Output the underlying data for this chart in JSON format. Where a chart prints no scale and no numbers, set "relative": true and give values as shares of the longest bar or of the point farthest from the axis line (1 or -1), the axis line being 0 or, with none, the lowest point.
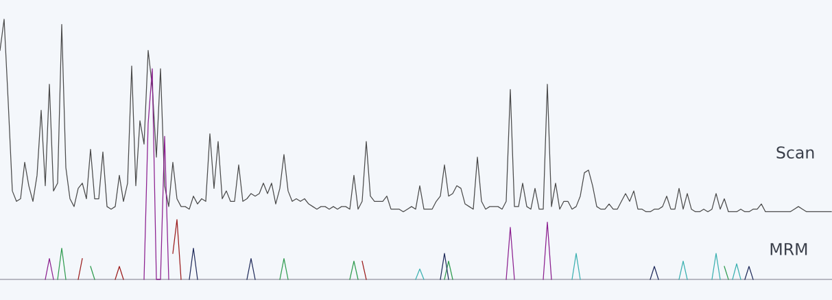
{
  "chart_data": {
    "type": "line",
    "relative": true,
    "categories": [
      null,
      null,
      null,
      null,
      null,
      null,
      null,
      null,
      null,
      null,
      null,
      null,
      null,
      null,
      null,
      null,
      null,
      null,
      null,
      null,
      null,
      null,
      null,
      null,
      null,
      null,
      null,
      null,
      null,
      null,
      null,
      null,
      null,
      null,
      null,
      null,
      null,
      null,
      null,
      null,
      null,
      null,
      null,
      null,
      null,
      null,
      null,
      null,
      null,
      null,
      null,
      null,
      null,
      null,
      null,
      null,
      null,
      null,
      null,
      null,
      null,
      null,
      null,
      null,
      null,
      null,
      null,
      null,
      null,
      null,
      null,
      null,
      null,
      null,
      null,
      null,
      null,
      null,
      null,
      null,
      null,
      null,
      null,
      null,
      null,
      null,
      null,
      null,
      null,
      null,
      null,
      null,
      null,
      null,
      null,
      null,
      null,
      null,
      null,
      null,
      null,
      null,
      null,
      null,
      null,
      null,
      null,
      null,
      null,
      null,
      null,
      null,
      null,
      null,
      null,
      null,
      null,
      null,
      null,
      null,
      null,
      null,
      null,
      null,
      null,
      null,
      null,
      null,
      null,
      null,
      null,
      null,
      null,
      null,
      null,
      null,
      null,
      null,
      null,
      null,
      null,
      null,
      null,
      null,
      null,
      null,
      null,
      null,
      null,
      null,
      null,
      null,
      null,
      null,
      null,
      null,
      null,
      null,
      null,
      null,
      null,
      null,
      null,
      null,
      null,
      null,
      null,
      null,
      null,
      null,
      null,
      null,
      null,
      null,
      null,
      null,
      null,
      null,
      null,
      null,
      null,
      null,
      null,
      null,
      null,
      null,
      null,
      null,
      null,
      null,
      null,
      null,
      null,
      null,
      null,
      null,
      null,
      null,
      null,
      null,
      null,
      null,
      null
    ],
    "series": [
      {
        "color": "#4a4a4a",
        "values": [
          0.88,
          1.0,
          0.68,
          0.34,
          0.3,
          0.31,
          0.45,
          0.36,
          0.3,
          0.4,
          0.65,
          0.36,
          0.75,
          0.34,
          0.37,
          0.98,
          0.43,
          0.31,
          0.28,
          0.35,
          0.37,
          0.31,
          0.5,
          0.31,
          0.31,
          0.49,
          0.28,
          0.27,
          0.28,
          0.4,
          0.3,
          0.37,
          0.82,
          0.36,
          0.61,
          0.52,
          0.88,
          0.74,
          0.47,
          0.81,
          0.36,
          0.28,
          0.45,
          0.31,
          0.28,
          0.28,
          0.27,
          0.32,
          0.29,
          0.31,
          0.3,
          0.56,
          0.35,
          0.53,
          0.31,
          0.34,
          0.3,
          0.3,
          0.44,
          0.3,
          0.31,
          0.33,
          0.32,
          0.33,
          0.37,
          0.33,
          0.37,
          0.29,
          0.35,
          0.48,
          0.34,
          0.3,
          0.31,
          0.3,
          0.31,
          0.29,
          0.28,
          0.27,
          0.28,
          0.28,
          0.27,
          0.28,
          0.27,
          0.28,
          0.28,
          0.27,
          0.4,
          0.27,
          0.3,
          0.53,
          0.32,
          0.3,
          0.3,
          0.3,
          0.32,
          0.27,
          0.27,
          0.27,
          0.26,
          0.27,
          0.28,
          0.27,
          0.36,
          0.27,
          0.27,
          0.27,
          0.3,
          0.32,
          0.44,
          0.32,
          0.33,
          0.36,
          0.35,
          0.29,
          0.28,
          0.27,
          0.47,
          0.3,
          0.27,
          0.28,
          0.28,
          0.28,
          0.27,
          0.3,
          0.73,
          0.28,
          0.28,
          0.37,
          0.28,
          0.27,
          0.35,
          0.27,
          0.27,
          0.75,
          0.28,
          0.37,
          0.27,
          0.3,
          0.3,
          0.27,
          0.28,
          0.32,
          0.41,
          0.42,
          0.36,
          0.28,
          0.27,
          0.27,
          0.29,
          0.27,
          0.27,
          0.3,
          0.33,
          0.3,
          0.34,
          0.27,
          0.27,
          0.26,
          0.26,
          0.27,
          0.27,
          0.28,
          0.32,
          0.27,
          0.27,
          0.35,
          0.27,
          0.33,
          0.27,
          0.26,
          0.26,
          0.27,
          0.26,
          0.27,
          0.33,
          0.27,
          0.31,
          0.26,
          0.26,
          0.26,
          0.27,
          0.26,
          0.26,
          0.27,
          0.27,
          0.29,
          0.26,
          0.26,
          0.26,
          0.26,
          0.26,
          0.26,
          0.26,
          0.27,
          0.28,
          0.27,
          0.26,
          0.26,
          0.26,
          0.26,
          0.26,
          0.26,
          0.26
        ]
      },
      {
        "color": "#8b1f8f",
        "values": [
          null,
          null,
          null,
          null,
          null,
          null,
          null,
          null,
          null,
          null,
          null,
          0,
          0.08,
          0,
          null,
          null,
          null,
          null,
          null,
          null,
          null,
          null,
          null,
          null,
          null,
          null,
          null,
          null,
          null,
          null,
          null,
          null,
          null,
          null,
          null,
          0,
          0.6,
          0.81,
          0,
          0,
          0.55,
          0,
          null,
          null,
          null,
          null,
          null,
          null,
          null,
          null,
          null,
          null,
          null,
          null,
          null,
          null,
          null,
          null,
          null,
          null,
          null,
          null,
          null,
          null,
          null,
          null,
          null,
          null,
          null,
          null,
          null,
          null,
          null,
          null,
          null,
          null,
          null,
          null,
          null,
          null,
          null,
          null,
          null,
          null,
          null,
          null,
          null,
          null,
          null,
          null,
          null,
          null,
          null,
          null,
          null,
          null,
          null,
          null,
          null,
          null,
          null,
          null,
          null,
          null,
          null,
          null,
          null,
          null,
          null,
          null,
          null,
          null,
          null,
          null,
          null,
          null,
          null,
          null,
          null,
          null,
          null,
          null,
          null,
          0,
          0.2,
          0,
          null,
          null,
          null,
          null,
          null,
          null,
          0,
          0.22,
          0,
          null,
          null,
          null,
          null,
          null,
          null,
          null,
          null,
          null,
          null,
          null,
          null,
          null,
          null,
          null,
          null,
          null,
          null,
          null,
          null,
          null,
          null,
          null,
          null,
          null,
          null,
          null,
          null,
          null,
          null,
          null,
          null,
          null,
          null,
          null,
          null,
          null,
          null,
          null,
          null,
          null,
          null,
          null,
          null,
          null,
          null,
          null,
          null,
          null,
          null,
          null,
          null,
          null,
          null,
          null,
          null,
          null,
          null,
          null,
          null,
          null,
          null,
          null,
          null,
          null,
          null,
          null,
          null
        ]
      },
      {
        "color": "#9b1b1b",
        "values": [
          null,
          null,
          null,
          null,
          null,
          null,
          null,
          null,
          null,
          null,
          null,
          null,
          null,
          null,
          null,
          null,
          null,
          null,
          null,
          0,
          0.08,
          null,
          null,
          null,
          null,
          null,
          null,
          null,
          0,
          0.05,
          0,
          null,
          null,
          null,
          null,
          null,
          null,
          null,
          null,
          null,
          null,
          null,
          0.1,
          0.23,
          0,
          null,
          null,
          null,
          null,
          null,
          null,
          null,
          null,
          null,
          null,
          null,
          null,
          null,
          null,
          null,
          null,
          null,
          null,
          null,
          null,
          null,
          null,
          null,
          null,
          null,
          null,
          null,
          null,
          null,
          null,
          null,
          null,
          null,
          null,
          null,
          null,
          null,
          null,
          null,
          null,
          null,
          null,
          null,
          0.07,
          0,
          null,
          null,
          null,
          null,
          null,
          null,
          null,
          null,
          null,
          null,
          null,
          null,
          null,
          null,
          null,
          null,
          null,
          null,
          null,
          null,
          null,
          null,
          null,
          null,
          null,
          null,
          null,
          null,
          null,
          null,
          null,
          null,
          null,
          null,
          null,
          null,
          null,
          null,
          null,
          null,
          null,
          null,
          null,
          null,
          null,
          null,
          null,
          null,
          null,
          null,
          null,
          null,
          null,
          null,
          null,
          null,
          null,
          null,
          null,
          null,
          null,
          null,
          null,
          null,
          null,
          null,
          null,
          null,
          null,
          null,
          null,
          null,
          null,
          null,
          null,
          null,
          null,
          null,
          null,
          null,
          null,
          null,
          null,
          null,
          null,
          null,
          null,
          null,
          null,
          null,
          null,
          null,
          null,
          null,
          null,
          null,
          null,
          null,
          null,
          null,
          null,
          null,
          null,
          null,
          null,
          null,
          null,
          null,
          null,
          null,
          null,
          null,
          null
        ]
      },
      {
        "color": "#2e9b4e",
        "values": [
          null,
          null,
          null,
          null,
          null,
          null,
          null,
          null,
          null,
          null,
          null,
          null,
          null,
          null,
          0,
          0.12,
          0,
          null,
          null,
          null,
          null,
          null,
          0.05,
          0,
          null,
          null,
          null,
          null,
          null,
          null,
          null,
          null,
          null,
          null,
          null,
          null,
          null,
          null,
          null,
          null,
          null,
          null,
          null,
          null,
          null,
          null,
          null,
          null,
          null,
          null,
          null,
          null,
          null,
          null,
          null,
          null,
          null,
          null,
          null,
          null,
          null,
          null,
          null,
          null,
          null,
          null,
          null,
          null,
          0,
          0.08,
          0,
          null,
          null,
          null,
          null,
          null,
          null,
          null,
          null,
          null,
          null,
          null,
          null,
          null,
          null,
          0,
          0.07,
          0,
          null,
          null,
          null,
          null,
          null,
          null,
          null,
          null,
          null,
          null,
          null,
          null,
          null,
          null,
          null,
          null,
          null,
          null,
          null,
          null,
          0,
          0.07,
          0,
          null,
          null,
          null,
          null,
          null,
          null,
          null,
          null,
          null,
          null,
          null,
          null,
          null,
          null,
          null,
          null,
          null,
          null,
          null,
          null,
          null,
          null,
          null,
          null,
          null,
          null,
          null,
          null,
          null,
          null,
          null,
          null,
          null,
          null,
          null,
          null,
          null,
          null,
          null,
          null,
          null,
          null,
          null,
          null,
          null,
          null,
          null,
          null,
          null,
          null,
          null,
          null,
          null,
          null,
          null,
          null,
          null,
          null,
          null,
          null,
          null,
          null,
          null,
          null,
          null,
          0.05,
          0,
          null,
          null,
          null,
          null,
          null,
          null,
          null,
          null,
          null,
          null,
          null,
          null,
          null,
          null,
          null,
          null,
          null,
          null,
          null,
          null,
          null,
          null,
          null,
          null,
          null
        ]
      },
      {
        "color": "#3ab0b0",
        "values": [
          null,
          null,
          null,
          null,
          null,
          null,
          null,
          null,
          null,
          null,
          null,
          null,
          null,
          null,
          null,
          null,
          null,
          null,
          null,
          null,
          null,
          null,
          null,
          null,
          null,
          null,
          null,
          null,
          null,
          null,
          null,
          null,
          null,
          null,
          null,
          null,
          null,
          null,
          null,
          null,
          null,
          null,
          null,
          null,
          null,
          null,
          null,
          null,
          null,
          null,
          null,
          null,
          null,
          null,
          null,
          null,
          null,
          null,
          null,
          null,
          null,
          null,
          null,
          null,
          null,
          null,
          null,
          null,
          null,
          null,
          null,
          null,
          null,
          null,
          null,
          null,
          null,
          null,
          null,
          null,
          null,
          null,
          null,
          null,
          null,
          null,
          null,
          null,
          null,
          null,
          null,
          null,
          null,
          null,
          null,
          null,
          null,
          null,
          null,
          null,
          null,
          0,
          0.04,
          0,
          null,
          null,
          null,
          null,
          null,
          null,
          null,
          null,
          null,
          null,
          null,
          null,
          null,
          null,
          null,
          null,
          null,
          null,
          null,
          null,
          null,
          null,
          null,
          null,
          null,
          null,
          null,
          null,
          null,
          null,
          null,
          null,
          null,
          null,
          null,
          0,
          0.1,
          0,
          null,
          null,
          null,
          null,
          null,
          null,
          null,
          null,
          null,
          null,
          null,
          null,
          null,
          null,
          null,
          null,
          null,
          null,
          null,
          null,
          null,
          null,
          null,
          0,
          0.07,
          0,
          null,
          null,
          null,
          null,
          null,
          0,
          0.1,
          0,
          null,
          null,
          0,
          0.06,
          0,
          null,
          null,
          null,
          null,
          null,
          null,
          null,
          null,
          null,
          null,
          null,
          null,
          null,
          null,
          null,
          null,
          null,
          null,
          null,
          null,
          null,
          null
        ]
      },
      {
        "color": "#1f2a5a",
        "values": [
          null,
          null,
          null,
          null,
          null,
          null,
          null,
          null,
          null,
          null,
          null,
          null,
          null,
          null,
          null,
          null,
          null,
          null,
          null,
          null,
          null,
          null,
          null,
          null,
          null,
          null,
          null,
          null,
          null,
          null,
          null,
          null,
          null,
          null,
          null,
          null,
          null,
          null,
          null,
          null,
          null,
          null,
          null,
          null,
          null,
          null,
          0,
          0.12,
          0,
          null,
          null,
          null,
          null,
          null,
          null,
          null,
          null,
          null,
          null,
          null,
          0,
          0.08,
          0,
          null,
          null,
          null,
          null,
          null,
          null,
          null,
          null,
          null,
          null,
          null,
          null,
          null,
          null,
          null,
          null,
          null,
          null,
          null,
          null,
          null,
          null,
          null,
          null,
          null,
          null,
          null,
          null,
          null,
          null,
          null,
          null,
          null,
          null,
          null,
          null,
          null,
          null,
          null,
          null,
          null,
          null,
          null,
          null,
          0,
          0.1,
          0,
          null,
          null,
          null,
          null,
          null,
          null,
          null,
          null,
          null,
          null,
          null,
          null,
          null,
          null,
          null,
          null,
          null,
          null,
          null,
          null,
          null,
          null,
          null,
          null,
          null,
          null,
          null,
          null,
          null,
          null,
          null,
          null,
          null,
          null,
          null,
          null,
          null,
          null,
          null,
          null,
          null,
          null,
          null,
          null,
          null,
          null,
          null,
          null,
          0,
          0.05,
          0,
          null,
          null,
          null,
          null,
          null,
          null,
          null,
          null,
          null,
          null,
          null,
          null,
          null,
          null,
          null,
          null,
          null,
          null,
          null,
          null,
          0,
          0.05,
          0,
          null,
          null,
          null,
          null,
          null,
          null,
          null,
          null,
          null,
          null,
          null,
          null,
          null,
          null,
          null,
          null,
          null,
          null,
          null
        ]
      }
    ],
    "annotations": [
      "Scan",
      "MRM"
    ]
  }
}
